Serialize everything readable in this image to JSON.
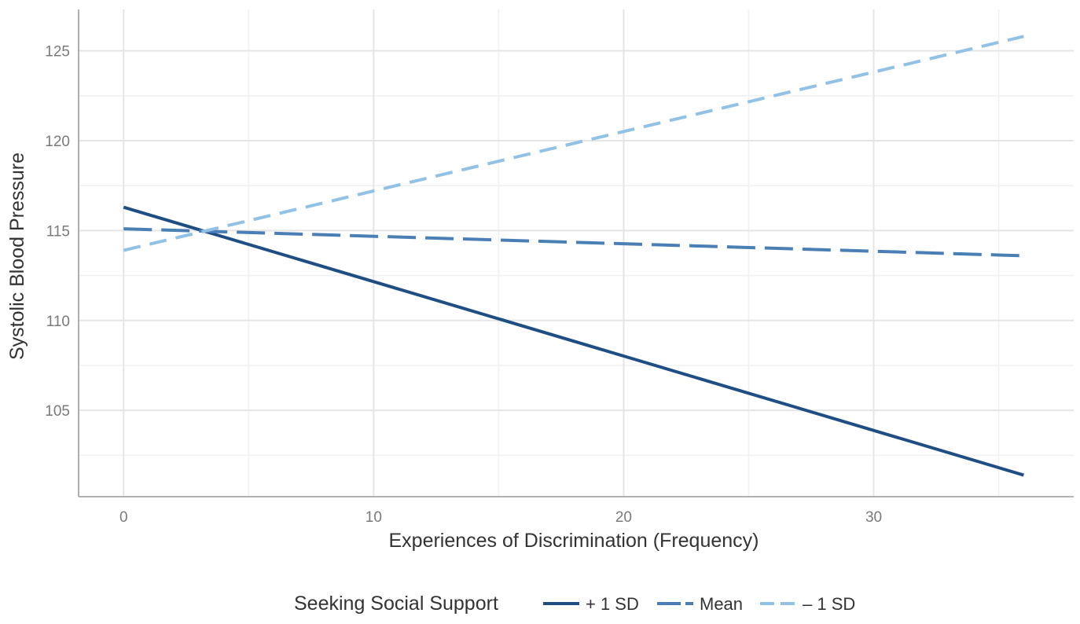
{
  "chart_data": {
    "type": "line",
    "xlabel": "Experiences of Discrimination (Frequency)",
    "ylabel": "Systolic Blood Pressure",
    "xlim": [
      -1.8,
      38
    ],
    "ylim": [
      100.2,
      127.3
    ],
    "x_ticks": [
      0,
      10,
      20,
      30
    ],
    "y_ticks": [
      105,
      110,
      115,
      120,
      125
    ],
    "grid": true,
    "legend": {
      "title": "Seeking Social Support",
      "placement": "bottom"
    },
    "series": [
      {
        "name": "+ 1 SD",
        "x": [
          0,
          36
        ],
        "y": [
          116.3,
          101.4
        ],
        "color": "#1f4e85",
        "dash": "solid"
      },
      {
        "name": "Mean",
        "x": [
          0,
          36
        ],
        "y": [
          115.1,
          113.6
        ],
        "color": "#4a7fb5",
        "dash": "long-dash"
      },
      {
        "name": "– 1 SD",
        "x": [
          0,
          36
        ],
        "y": [
          113.9,
          125.8
        ],
        "color": "#92c1e6",
        "dash": "short-dash"
      }
    ]
  }
}
